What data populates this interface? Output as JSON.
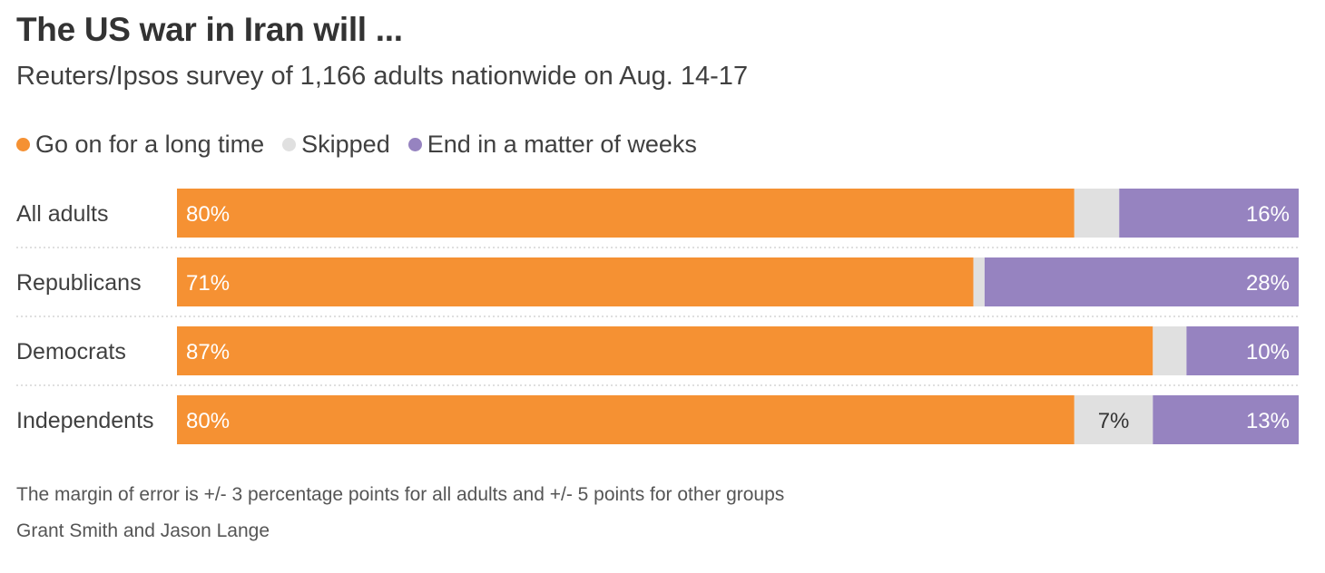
{
  "title": "The US war in Iran will ...",
  "subtitle": "Reuters/Ipsos survey of 1,166 adults nationwide on Aug. 14-17",
  "footnote": "The margin of error is +/- 3 percentage points for all adults and +/- 5 points for other groups",
  "credit": "Grant Smith and Jason Lange",
  "colors": {
    "long_time": "#f59133",
    "skipped": "#e0e0e0",
    "weeks": "#9683c0"
  },
  "chart_data": {
    "type": "bar",
    "orientation": "horizontal",
    "stacked": true,
    "unit": "%",
    "xlim": [
      0,
      100
    ],
    "legend_position": "top-left",
    "categories": [
      "All adults",
      "Republicans",
      "Democrats",
      "Independents"
    ],
    "series": [
      {
        "name": "Go on for a long time",
        "values": [
          80,
          71,
          87,
          80
        ],
        "labels": [
          "80%",
          "71%",
          "87%",
          "80%"
        ]
      },
      {
        "name": "Skipped",
        "values": [
          4,
          1,
          3,
          7
        ],
        "labels": [
          "",
          "",
          "",
          "7%"
        ]
      },
      {
        "name": "End in a matter of weeks",
        "values": [
          16,
          28,
          10,
          13
        ],
        "labels": [
          "16%",
          "28%",
          "10%",
          "13%"
        ]
      }
    ]
  }
}
